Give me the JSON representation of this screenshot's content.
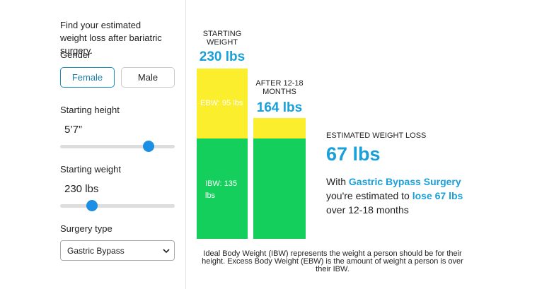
{
  "sidebar": {
    "intro": "Find your estimated weight loss after bariatric surgery.",
    "gender": {
      "label": "Gender",
      "options": [
        "Female",
        "Male"
      ]
    },
    "height": {
      "label": "Starting height",
      "value": "5’7”"
    },
    "weight": {
      "label": "Starting weight",
      "value": "230 lbs"
    },
    "surgery": {
      "label": "Surgery type",
      "value": "Gastric Bypass"
    }
  },
  "results": {
    "starting": {
      "label": "STARTING WEIGHT",
      "value": "230 lbs",
      "ebw": "EBW: 95 lbs",
      "ibw": "IBW: 135 lbs"
    },
    "after": {
      "label": "AFTER 12-18 MONTHS",
      "value": "164 lbs"
    },
    "loss": {
      "label": "ESTIMATED WEIGHT LOSS",
      "value": "67 lbs",
      "summary": [
        "With ",
        "Gastric Bypass Surgery",
        " you're estimated to ",
        "lose 67 lbs",
        " over 12-18 months"
      ]
    },
    "note": "Ideal Body Weight (IBW) represents the weight a person should be for their height. Excess Body Weight (EBW) is the amount of weight a person is over their IBW."
  }
}
